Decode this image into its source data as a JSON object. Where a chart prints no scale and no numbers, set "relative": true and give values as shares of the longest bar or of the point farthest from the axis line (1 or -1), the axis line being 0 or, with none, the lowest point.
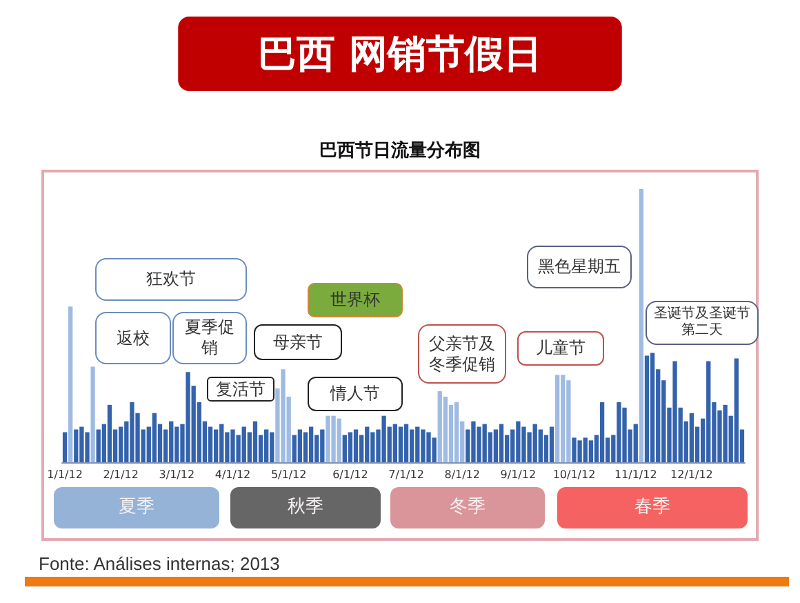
{
  "chart_data": {
    "type": "bar",
    "title": "巴西 网销节假日",
    "subtitle": "巴西节日流量分布图",
    "relative": true,
    "categories": [
      "1/1/12",
      null,
      null,
      null,
      null,
      null,
      null,
      null,
      null,
      null,
      "2/1/12",
      null,
      null,
      null,
      null,
      null,
      null,
      null,
      null,
      null,
      "3/1/12",
      null,
      null,
      null,
      null,
      null,
      null,
      null,
      null,
      null,
      "4/1/12",
      null,
      null,
      null,
      null,
      null,
      null,
      null,
      null,
      null,
      "5/1/12",
      null,
      null,
      null,
      null,
      null,
      null,
      null,
      null,
      null,
      null,
      "6/1/12",
      null,
      null,
      null,
      null,
      null,
      null,
      null,
      null,
      null,
      "7/1/12",
      null,
      null,
      null,
      null,
      null,
      null,
      null,
      null,
      null,
      "8/1/12",
      null,
      null,
      null,
      null,
      null,
      null,
      null,
      null,
      null,
      "9/1/12",
      null,
      null,
      null,
      null,
      null,
      null,
      null,
      null,
      null,
      "10/1/12",
      null,
      null,
      null,
      null,
      null,
      null,
      null,
      null,
      null,
      null,
      "11/1/12",
      null,
      null,
      null,
      null,
      null,
      null,
      null,
      null,
      null,
      "12/1/12",
      null,
      null,
      null,
      null,
      null,
      null,
      null,
      null,
      null
    ],
    "values": [
      0.11,
      0.57,
      0.12,
      0.13,
      0.11,
      0.35,
      0.12,
      0.14,
      0.21,
      0.12,
      0.13,
      0.15,
      0.22,
      0.18,
      0.12,
      0.13,
      0.18,
      0.14,
      0.12,
      0.15,
      0.13,
      0.14,
      0.33,
      0.28,
      0.22,
      0.15,
      0.13,
      0.12,
      0.14,
      0.11,
      0.12,
      0.1,
      0.13,
      0.11,
      0.15,
      0.1,
      0.12,
      0.11,
      0.27,
      0.34,
      0.24,
      0.1,
      0.12,
      0.11,
      0.13,
      0.1,
      0.12,
      0.17,
      0.17,
      0.16,
      0.1,
      0.11,
      0.12,
      0.1,
      0.13,
      0.11,
      0.12,
      0.17,
      0.13,
      0.14,
      0.13,
      0.14,
      0.12,
      0.13,
      0.12,
      0.11,
      0.09,
      0.26,
      0.24,
      0.21,
      0.22,
      0.15,
      0.12,
      0.15,
      0.13,
      0.14,
      0.11,
      0.12,
      0.14,
      0.1,
      0.12,
      0.15,
      0.13,
      0.11,
      0.14,
      0.12,
      0.1,
      0.13,
      0.32,
      0.32,
      0.3,
      0.09,
      0.08,
      0.09,
      0.08,
      0.1,
      0.22,
      0.09,
      0.1,
      0.22,
      0.2,
      0.12,
      0.14,
      1,
      0.39,
      0.4,
      0.34,
      0.3,
      0.2,
      0.37,
      0.2,
      0.15,
      0.18,
      0.13,
      0.16,
      0.37,
      0.22,
      0.19,
      0.21,
      0.17,
      0.38,
      0.12
    ],
    "colors": [
      "#3463ad",
      "#9fbbe3",
      "#3463ad",
      "#3463ad",
      "#3463ad",
      "#9fbbe3",
      "#3463ad",
      "#3463ad",
      "#3463ad",
      "#3463ad",
      "#3463ad",
      "#3463ad",
      "#3463ad",
      "#3463ad",
      "#3463ad",
      "#3463ad",
      "#3463ad",
      "#3463ad",
      "#3463ad",
      "#3463ad",
      "#3463ad",
      "#3463ad",
      "#3463ad",
      "#3463ad",
      "#3463ad",
      "#3463ad",
      "#3463ad",
      "#3463ad",
      "#3463ad",
      "#3463ad",
      "#3463ad",
      "#3463ad",
      "#3463ad",
      "#3463ad",
      "#3463ad",
      "#3463ad",
      "#3463ad",
      "#3463ad",
      "#9fbbe3",
      "#9fbbe3",
      "#9fbbe3",
      "#3463ad",
      "#3463ad",
      "#3463ad",
      "#3463ad",
      "#3463ad",
      "#3463ad",
      "#9fbbe3",
      "#9fbbe3",
      "#9fbbe3",
      "#3463ad",
      "#3463ad",
      "#3463ad",
      "#3463ad",
      "#3463ad",
      "#3463ad",
      "#3463ad",
      "#3463ad",
      "#3463ad",
      "#3463ad",
      "#3463ad",
      "#3463ad",
      "#3463ad",
      "#3463ad",
      "#3463ad",
      "#3463ad",
      "#3463ad",
      "#9fbbe3",
      "#9fbbe3",
      "#9fbbe3",
      "#9fbbe3",
      "#9fbbe3",
      "#3463ad",
      "#3463ad",
      "#3463ad",
      "#3463ad",
      "#3463ad",
      "#3463ad",
      "#3463ad",
      "#3463ad",
      "#3463ad",
      "#3463ad",
      "#3463ad",
      "#3463ad",
      "#3463ad",
      "#3463ad",
      "#3463ad",
      "#3463ad",
      "#9fbbe3",
      "#9fbbe3",
      "#9fbbe3",
      "#3463ad",
      "#3463ad",
      "#3463ad",
      "#3463ad",
      "#3463ad",
      "#3463ad",
      "#3463ad",
      "#3463ad",
      "#3463ad",
      "#3463ad",
      "#3463ad",
      "#3463ad",
      "#9fbbe3",
      "#3463ad",
      "#3463ad",
      "#3463ad",
      "#3463ad",
      "#3463ad",
      "#3463ad",
      "#3463ad",
      "#3463ad",
      "#3463ad",
      "#3463ad",
      "#3463ad",
      "#3463ad",
      "#3463ad",
      "#3463ad",
      "#3463ad",
      "#3463ad",
      "#3463ad",
      "#3463ad"
    ],
    "annotations": [
      "狂欢节",
      "返校",
      "夏季促销",
      "复活节",
      "母亲节",
      "世界杯",
      "情人节",
      "父亲节及冬季促销",
      "儿童节",
      "黑色星期五",
      "圣诞节及圣诞节第二天",
      "夏季",
      "秋季",
      "冬季",
      "春季",
      "Fonte: Análises internas; 2013"
    ]
  }
}
